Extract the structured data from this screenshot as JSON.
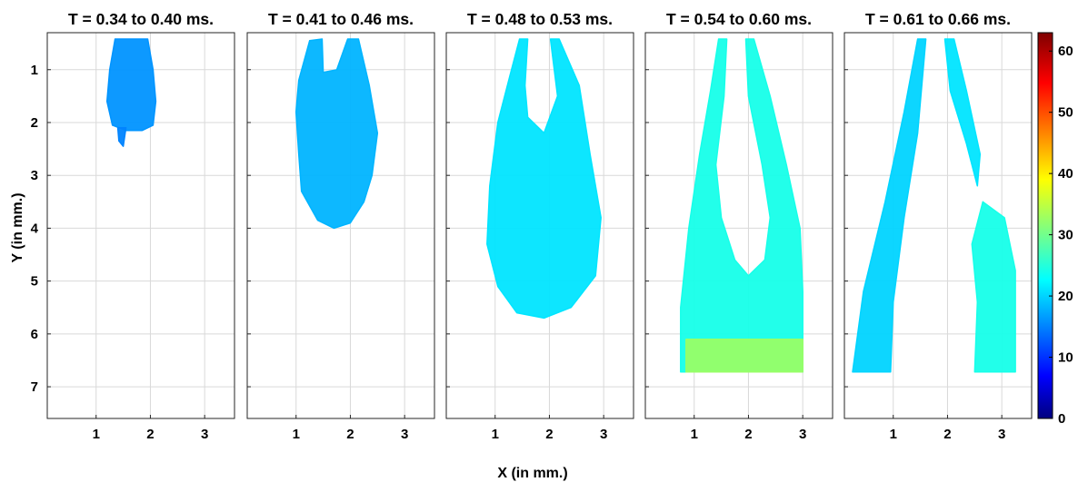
{
  "figure": {
    "xlabel": "X (in mm.)",
    "ylabel": "Y (in mm.)"
  },
  "chart_data": {
    "type": "heatmap",
    "x_ticks": [
      1,
      2,
      3
    ],
    "y_ticks": [
      1,
      2,
      3,
      4,
      5,
      6,
      7
    ],
    "xlim": [
      0.1,
      3.55
    ],
    "ylim": [
      0.3,
      7.6
    ],
    "y_reversed": true,
    "colormap": "jet",
    "colorbar": {
      "min": 0,
      "max": 63,
      "ticks": [
        0,
        10,
        20,
        30,
        40,
        50,
        60
      ]
    },
    "grid": true,
    "panels": [
      {
        "title": "T = 0.34 to 0.40 ms.",
        "regions": [
          {
            "shape": [
              [
                1.35,
                0.42
              ],
              [
                1.95,
                0.42
              ],
              [
                2.05,
                1.0
              ],
              [
                2.1,
                1.6
              ],
              [
                2.05,
                2.05
              ],
              [
                1.85,
                2.15
              ],
              [
                1.55,
                2.15
              ],
              [
                1.3,
                2.05
              ],
              [
                1.2,
                1.6
              ],
              [
                1.25,
                1.0
              ]
            ],
            "value": 17
          },
          {
            "shape": [
              [
                1.4,
                2.1
              ],
              [
                1.55,
                2.1
              ],
              [
                1.5,
                2.45
              ],
              [
                1.42,
                2.35
              ]
            ],
            "value": 16
          }
        ]
      },
      {
        "title": "T = 0.41 to 0.46 ms.",
        "regions": [
          {
            "shape": [
              [
                1.25,
                0.45
              ],
              [
                1.48,
                0.42
              ],
              [
                1.5,
                1.05
              ],
              [
                1.75,
                1.0
              ],
              [
                1.95,
                0.42
              ],
              [
                2.15,
                0.42
              ],
              [
                2.35,
                1.3
              ],
              [
                2.5,
                2.2
              ],
              [
                2.4,
                3.0
              ],
              [
                2.25,
                3.5
              ],
              [
                2.0,
                3.9
              ],
              [
                1.7,
                4.0
              ],
              [
                1.4,
                3.85
              ],
              [
                1.1,
                3.3
              ],
              [
                1.05,
                2.6
              ],
              [
                1.0,
                1.8
              ],
              [
                1.05,
                1.2
              ]
            ],
            "value": 19
          }
        ]
      },
      {
        "title": "T = 0.48 to 0.53 ms.",
        "regions": [
          {
            "shape": [
              [
                1.45,
                0.42
              ],
              [
                1.6,
                0.42
              ],
              [
                1.55,
                1.3
              ],
              [
                1.6,
                1.9
              ],
              [
                1.9,
                2.2
              ],
              [
                2.15,
                1.5
              ],
              [
                2.02,
                0.42
              ],
              [
                2.18,
                0.42
              ],
              [
                2.55,
                1.3
              ],
              [
                2.75,
                2.6
              ],
              [
                2.95,
                3.8
              ],
              [
                2.85,
                4.9
              ],
              [
                2.4,
                5.5
              ],
              [
                1.9,
                5.7
              ],
              [
                1.4,
                5.6
              ],
              [
                1.05,
                5.1
              ],
              [
                0.85,
                4.3
              ],
              [
                0.9,
                3.2
              ],
              [
                1.05,
                2.0
              ],
              [
                1.25,
                1.2
              ]
            ],
            "value": 22
          }
        ]
      },
      {
        "title": "T = 0.54 to 0.60 ms.",
        "regions": [
          {
            "shape": [
              [
                1.45,
                0.42
              ],
              [
                1.6,
                0.42
              ],
              [
                1.55,
                1.5
              ],
              [
                1.4,
                2.8
              ],
              [
                1.5,
                3.8
              ],
              [
                1.75,
                4.6
              ],
              [
                2.0,
                4.9
              ],
              [
                2.3,
                4.6
              ],
              [
                2.4,
                3.8
              ],
              [
                2.25,
                2.8
              ],
              [
                2.0,
                1.5
              ],
              [
                1.95,
                0.42
              ],
              [
                2.1,
                0.42
              ],
              [
                2.4,
                1.5
              ],
              [
                2.7,
                2.8
              ],
              [
                2.95,
                4.0
              ],
              [
                3.0,
                5.2
              ],
              [
                3.0,
                6.72
              ],
              [
                0.75,
                6.72
              ],
              [
                0.75,
                5.5
              ],
              [
                0.9,
                4.0
              ],
              [
                1.1,
                2.6
              ],
              [
                1.3,
                1.4
              ]
            ],
            "value": 25
          },
          {
            "shape": [
              [
                0.85,
                6.1
              ],
              [
                3.0,
                6.1
              ],
              [
                3.0,
                6.72
              ],
              [
                0.85,
                6.72
              ]
            ],
            "value": 33
          }
        ]
      },
      {
        "title": "T = 0.61 to 0.66 ms.",
        "regions": [
          {
            "shape": [
              [
                1.45,
                0.42
              ],
              [
                1.6,
                0.42
              ],
              [
                1.45,
                2.2
              ],
              [
                1.2,
                3.8
              ],
              [
                1.0,
                5.4
              ],
              [
                0.95,
                6.72
              ],
              [
                0.25,
                6.72
              ],
              [
                0.45,
                5.2
              ],
              [
                0.85,
                3.5
              ],
              [
                1.2,
                1.8
              ]
            ],
            "value": 21
          },
          {
            "shape": [
              [
                1.95,
                0.42
              ],
              [
                2.12,
                0.42
              ],
              [
                2.35,
                1.4
              ],
              [
                2.6,
                2.6
              ],
              [
                2.55,
                3.2
              ],
              [
                2.35,
                2.4
              ],
              [
                2.05,
                1.4
              ]
            ],
            "value": 22
          },
          {
            "shape": [
              [
                2.65,
                3.5
              ],
              [
                3.05,
                3.8
              ],
              [
                3.25,
                4.8
              ],
              [
                3.25,
                6.72
              ],
              [
                2.5,
                6.72
              ],
              [
                2.55,
                5.4
              ],
              [
                2.45,
                4.3
              ]
            ],
            "value": 25
          }
        ]
      }
    ]
  }
}
